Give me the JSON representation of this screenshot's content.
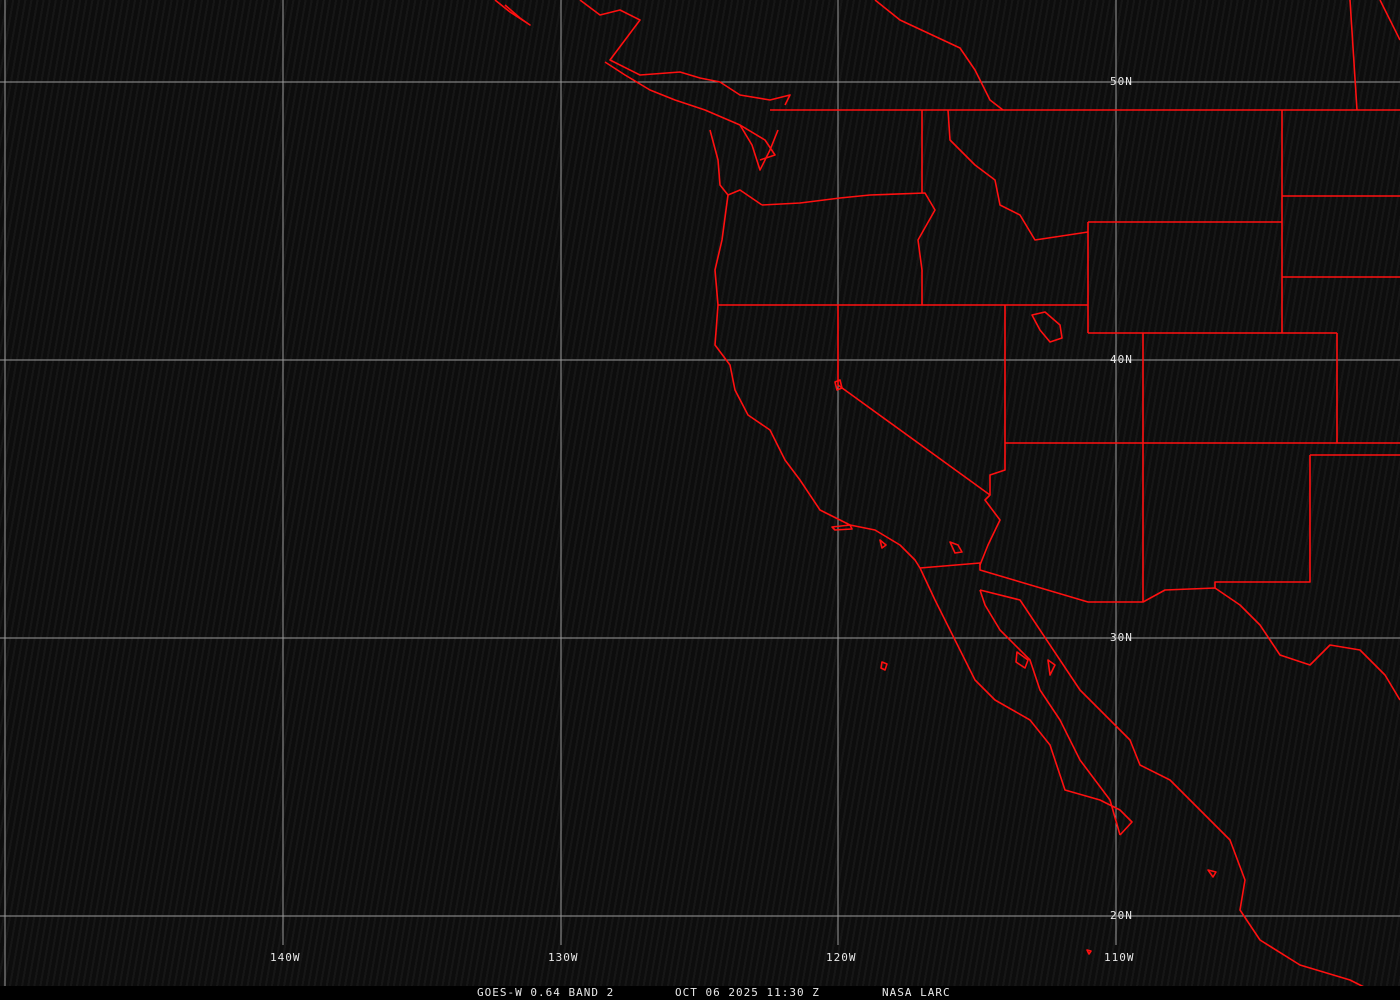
{
  "map": {
    "title": "GOES-W 0.64 BAND 2",
    "datetime": "OCT 06 2025 11:30 Z",
    "credit": "NASA LARC",
    "grid_color": "#9a9a9a",
    "border_color": "#ff0000",
    "lat_labels": [
      "50N",
      "40N",
      "30N",
      "20N"
    ],
    "lon_labels": [
      "140W",
      "130W",
      "120W",
      "110W"
    ]
  }
}
